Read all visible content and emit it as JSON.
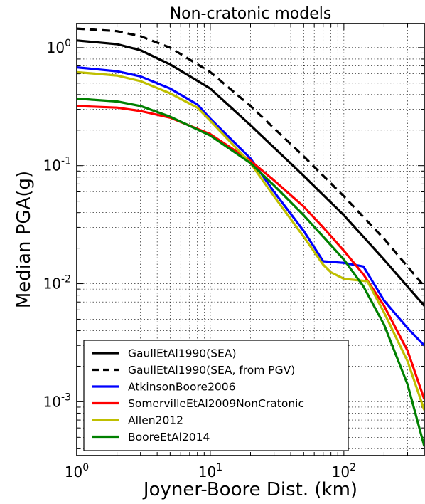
{
  "chart_data": {
    "type": "line",
    "title": "Non-cratonic models",
    "xlabel": "Joyner-Boore Dist. (km)",
    "ylabel": "Median PGA(g)",
    "xscale": "log",
    "yscale": "log",
    "xlim": [
      1,
      400
    ],
    "ylim": [
      0.00035,
      1.6
    ],
    "grid": true,
    "legend_position": "lower-left",
    "x_ticks": [
      {
        "value": 1,
        "base": "10",
        "exp": "0"
      },
      {
        "value": 10,
        "base": "10",
        "exp": "1"
      },
      {
        "value": 100,
        "base": "10",
        "exp": "2"
      }
    ],
    "y_ticks": [
      {
        "value": 0.001,
        "base": "10",
        "exp": "-3"
      },
      {
        "value": 0.01,
        "base": "10",
        "exp": "-2"
      },
      {
        "value": 0.1,
        "base": "10",
        "exp": "-1"
      },
      {
        "value": 1,
        "base": "10",
        "exp": "0"
      }
    ],
    "series": [
      {
        "name": "GaullEtAl1990(SEA)",
        "color": "#000000",
        "dash": "solid",
        "points": [
          [
            1,
            1.15
          ],
          [
            2,
            1.07
          ],
          [
            3,
            0.95
          ],
          [
            5,
            0.72
          ],
          [
            10,
            0.45
          ],
          [
            20,
            0.22
          ],
          [
            50,
            0.082
          ],
          [
            100,
            0.038
          ],
          [
            200,
            0.016
          ],
          [
            400,
            0.0065
          ]
        ]
      },
      {
        "name": "GaullEtAl1990(SEA, from PGV)",
        "color": "#000000",
        "dash": "dashed",
        "points": [
          [
            1,
            1.45
          ],
          [
            2,
            1.38
          ],
          [
            3,
            1.25
          ],
          [
            5,
            1.0
          ],
          [
            10,
            0.62
          ],
          [
            20,
            0.32
          ],
          [
            50,
            0.12
          ],
          [
            100,
            0.055
          ],
          [
            200,
            0.024
          ],
          [
            400,
            0.0095
          ]
        ]
      },
      {
        "name": "AtkinsonBoore2006",
        "color": "#0000ff",
        "dash": "solid",
        "points": [
          [
            1,
            0.68
          ],
          [
            2,
            0.63
          ],
          [
            3,
            0.57
          ],
          [
            5,
            0.45
          ],
          [
            8,
            0.33
          ],
          [
            10,
            0.25
          ],
          [
            20,
            0.115
          ],
          [
            30,
            0.06
          ],
          [
            50,
            0.028
          ],
          [
            70,
            0.0155
          ],
          [
            100,
            0.015
          ],
          [
            140,
            0.014
          ],
          [
            200,
            0.0072
          ],
          [
            300,
            0.0042
          ],
          [
            400,
            0.003
          ]
        ]
      },
      {
        "name": "SomervilleEtAl2009NonCratonic",
        "color": "#ff0000",
        "dash": "solid",
        "points": [
          [
            1,
            0.32
          ],
          [
            2,
            0.31
          ],
          [
            3,
            0.29
          ],
          [
            5,
            0.255
          ],
          [
            10,
            0.185
          ],
          [
            20,
            0.11
          ],
          [
            30,
            0.075
          ],
          [
            50,
            0.045
          ],
          [
            70,
            0.03
          ],
          [
            100,
            0.019
          ],
          [
            140,
            0.012
          ],
          [
            200,
            0.0065
          ],
          [
            300,
            0.0027
          ],
          [
            400,
            0.00105
          ]
        ]
      },
      {
        "name": "Allen2012",
        "color": "#bfbf00",
        "dash": "solid",
        "points": [
          [
            1,
            0.62
          ],
          [
            2,
            0.58
          ],
          [
            3,
            0.52
          ],
          [
            5,
            0.41
          ],
          [
            8,
            0.31
          ],
          [
            10,
            0.24
          ],
          [
            20,
            0.105
          ],
          [
            30,
            0.055
          ],
          [
            50,
            0.025
          ],
          [
            70,
            0.0145
          ],
          [
            80,
            0.0125
          ],
          [
            100,
            0.011
          ],
          [
            150,
            0.0105
          ],
          [
            200,
            0.0057
          ],
          [
            300,
            0.0022
          ],
          [
            400,
            0.00085
          ]
        ]
      },
      {
        "name": "BooreEtAl2014",
        "color": "#008000",
        "dash": "solid",
        "points": [
          [
            1,
            0.37
          ],
          [
            2,
            0.35
          ],
          [
            3,
            0.32
          ],
          [
            5,
            0.26
          ],
          [
            10,
            0.18
          ],
          [
            20,
            0.105
          ],
          [
            30,
            0.068
          ],
          [
            50,
            0.038
          ],
          [
            70,
            0.025
          ],
          [
            100,
            0.016
          ],
          [
            140,
            0.0095
          ],
          [
            200,
            0.0045
          ],
          [
            300,
            0.0014
          ],
          [
            400,
            0.00042
          ]
        ]
      }
    ]
  }
}
